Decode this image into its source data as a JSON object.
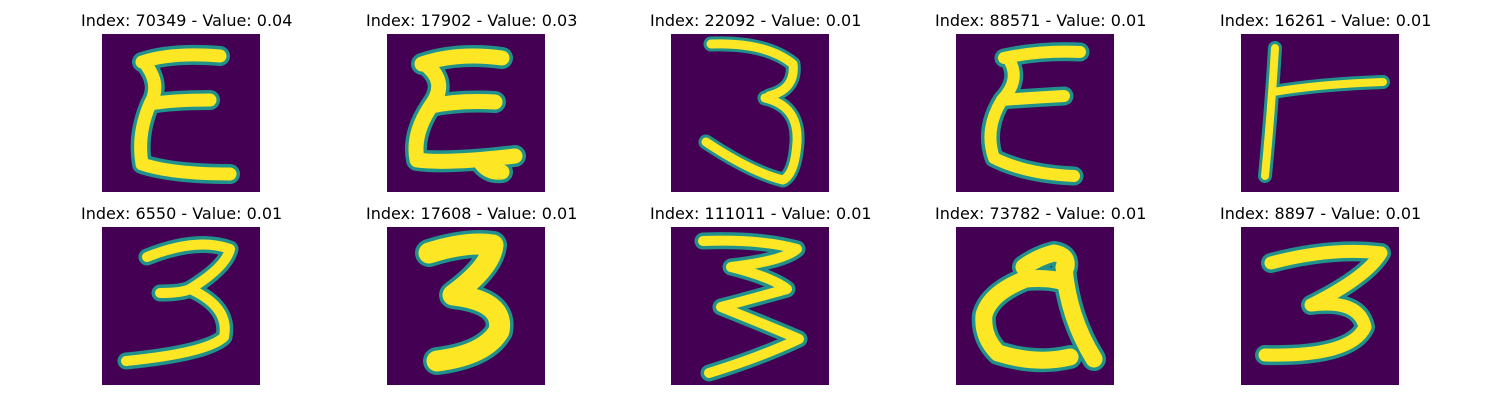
{
  "colors": {
    "background": "#440154",
    "stroke_mid": "#21918c",
    "stroke_high": "#fde725"
  },
  "panels": [
    {
      "title": "Index: 70349 - Value: 0.04",
      "glyph": "E"
    },
    {
      "title": "Index: 17902 - Value: 0.03",
      "glyph": "E"
    },
    {
      "title": "Index: 22092 - Value: 0.01",
      "glyph": "3"
    },
    {
      "title": "Index: 88571 - Value: 0.01",
      "glyph": "E"
    },
    {
      "title": "Index: 16261 - Value: 0.01",
      "glyph": "T"
    },
    {
      "title": "Index: 6550 - Value: 0.01",
      "glyph": "3"
    },
    {
      "title": "Index: 17608 - Value: 0.01",
      "glyph": "3"
    },
    {
      "title": "Index: 111011 - Value: 0.01",
      "glyph": "3"
    },
    {
      "title": "Index: 73782 - Value: 0.01",
      "glyph": "d"
    },
    {
      "title": "Index: 8897 - Value: 0.01",
      "glyph": "3"
    }
  ]
}
